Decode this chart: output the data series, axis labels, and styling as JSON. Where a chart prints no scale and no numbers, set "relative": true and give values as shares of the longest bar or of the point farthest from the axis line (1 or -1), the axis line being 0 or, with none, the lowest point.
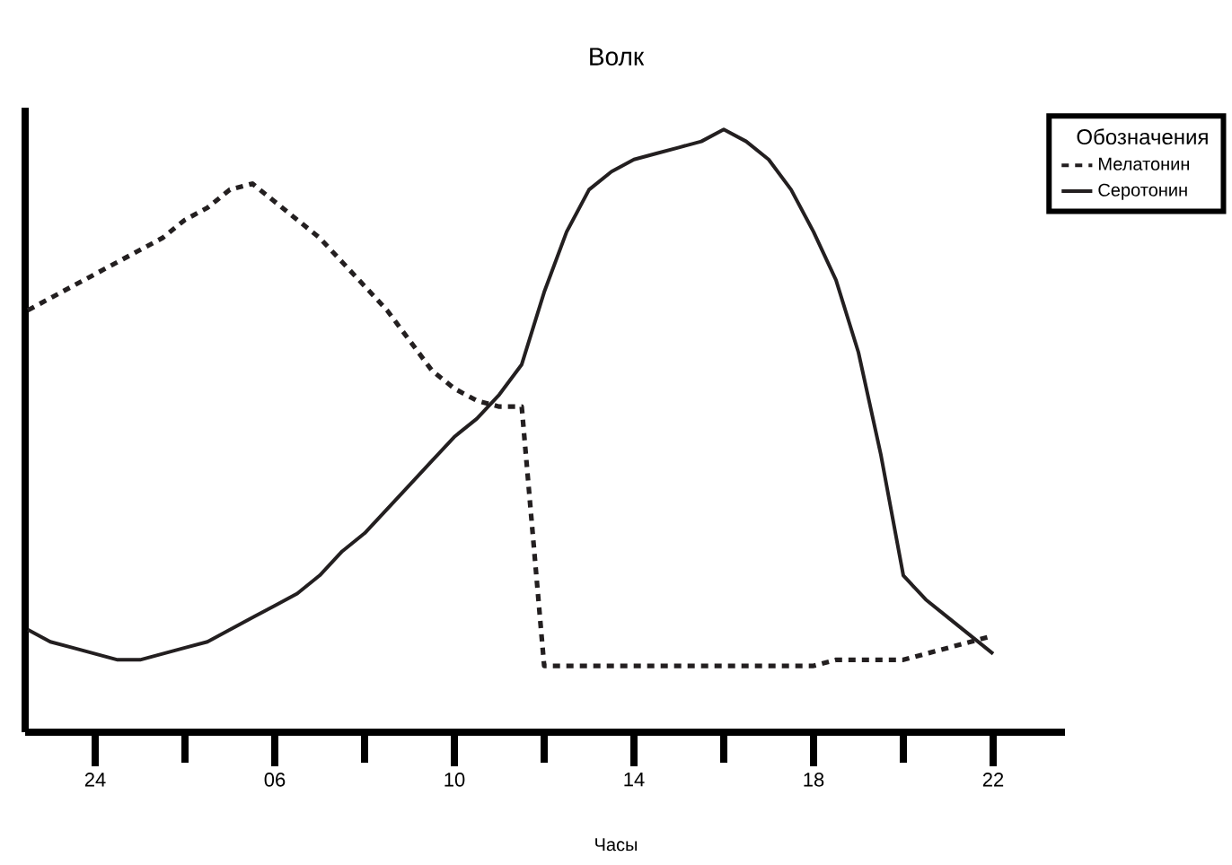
{
  "chart_data": {
    "type": "line",
    "title": "Волк",
    "xlabel": "Часы",
    "relative": true,
    "legend": "top right",
    "legend_title": "Обозначения",
    "categories": [
      null,
      null,
      null,
      "24",
      null,
      null,
      null,
      null,
      null,
      null,
      null,
      "06",
      null,
      null,
      null,
      null,
      null,
      null,
      null,
      "10",
      null,
      null,
      null,
      null,
      null,
      null,
      null,
      "14",
      null,
      null,
      null,
      null,
      null,
      null,
      null,
      "18",
      null,
      null,
      null,
      null,
      null,
      null,
      null,
      "22"
    ],
    "series": [
      {
        "name": "Мелатонин",
        "color": "#231f20",
        "line_style": "dashed",
        "values": [
          0.7,
          0.72,
          0.74,
          0.76,
          0.78,
          0.8,
          0.82,
          0.85,
          0.87,
          0.9,
          0.91,
          0.88,
          0.85,
          0.82,
          0.78,
          0.74,
          0.7,
          0.65,
          0.6,
          0.57,
          0.55,
          0.54,
          0.54,
          0.11,
          0.11,
          0.11,
          0.11,
          0.11,
          0.11,
          0.11,
          0.11,
          0.11,
          0.11,
          0.11,
          0.11,
          0.11,
          0.12,
          0.12,
          0.12,
          0.12,
          0.13,
          0.14,
          0.15,
          0.16
        ]
      },
      {
        "name": "Серотонин",
        "color": "#231f20",
        "line_style": "solid",
        "values": [
          0.17,
          0.15,
          0.14,
          0.13,
          0.12,
          0.12,
          0.13,
          0.14,
          0.15,
          0.17,
          0.19,
          0.21,
          0.23,
          0.26,
          0.3,
          0.33,
          0.37,
          0.41,
          0.45,
          0.49,
          0.52,
          0.56,
          0.61,
          0.73,
          0.83,
          0.9,
          0.93,
          0.95,
          0.96,
          0.97,
          0.98,
          1.0,
          0.98,
          0.95,
          0.9,
          0.83,
          0.75,
          0.63,
          0.46,
          0.26,
          0.22,
          0.19,
          0.16,
          0.13
        ]
      }
    ]
  }
}
